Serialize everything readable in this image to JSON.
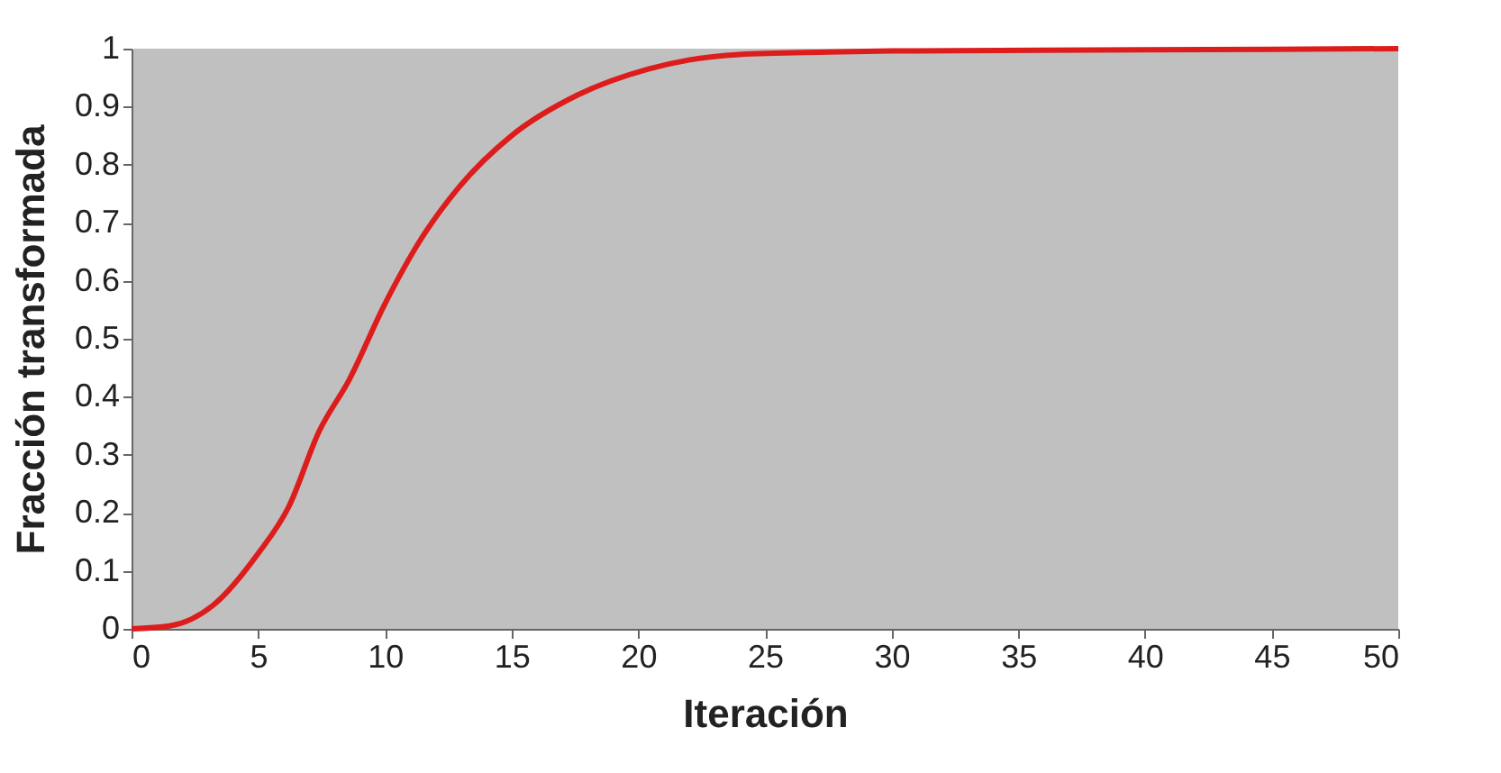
{
  "chart_data": {
    "type": "line",
    "xlabel": "Iteración",
    "ylabel": "Fracción transformada",
    "x": [
      0,
      1.5,
      3.2,
      5,
      6.2,
      7.4,
      8.6,
      10,
      11.4,
      12.9,
      15,
      17.6,
      20.4,
      24,
      27.5,
      30,
      40,
      50
    ],
    "series": [
      {
        "color": "#dd1c1c",
        "values": [
          0,
          0.005,
          0.04,
          0.13,
          0.21,
          0.34,
          0.43,
          0.56,
          0.67,
          0.76,
          0.85,
          0.92,
          0.965,
          0.99,
          0.994,
          0.996,
          0.998,
          1.0
        ]
      }
    ],
    "xlim": [
      0,
      50
    ],
    "xticks": [
      0,
      5,
      10,
      15,
      20,
      25,
      30,
      35,
      40,
      45,
      50
    ],
    "ylim": [
      0,
      1
    ],
    "yticks": [
      0,
      0.1,
      0.2,
      0.3,
      0.4,
      0.5,
      0.6,
      0.7,
      0.8,
      0.9,
      1
    ],
    "grid": false,
    "marker": "none",
    "line_style": "solid"
  }
}
